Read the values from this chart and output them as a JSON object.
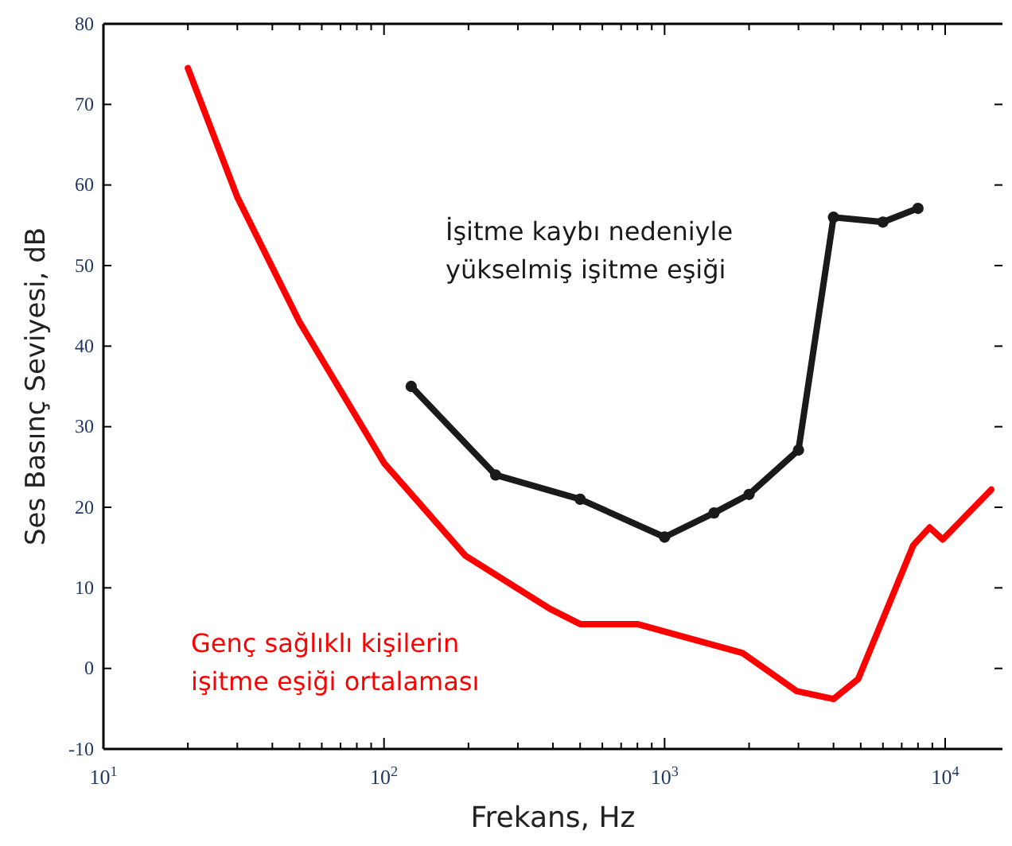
{
  "chart_data": {
    "type": "line",
    "xlabel": "Frekans, Hz",
    "ylabel": "Ses Basınç Seviyesi, dB",
    "log": "x",
    "grid": false,
    "xlim": [
      10,
      16000
    ],
    "ylim": [
      -10,
      80
    ],
    "xticks": [
      {
        "value": 10,
        "label": "10$^{1}$"
      },
      {
        "value": 20,
        "label": null
      },
      {
        "value": 30,
        "label": null
      },
      {
        "value": 40,
        "label": null
      },
      {
        "value": 50,
        "label": null
      },
      {
        "value": 60,
        "label": null
      },
      {
        "value": 70,
        "label": null
      },
      {
        "value": 80,
        "label": null
      },
      {
        "value": 90,
        "label": null
      },
      {
        "value": 100,
        "label": "10$^{2}$"
      },
      {
        "value": 200,
        "label": null
      },
      {
        "value": 300,
        "label": null
      },
      {
        "value": 400,
        "label": null
      },
      {
        "value": 500,
        "label": null
      },
      {
        "value": 600,
        "label": null
      },
      {
        "value": 700,
        "label": null
      },
      {
        "value": 800,
        "label": null
      },
      {
        "value": 900,
        "label": null
      },
      {
        "value": 1000,
        "label": "10$^{3}$"
      },
      {
        "value": 2000,
        "label": null
      },
      {
        "value": 3000,
        "label": null
      },
      {
        "value": 4000,
        "label": null
      },
      {
        "value": 5000,
        "label": null
      },
      {
        "value": 6000,
        "label": null
      },
      {
        "value": 7000,
        "label": null
      },
      {
        "value": 8000,
        "label": null
      },
      {
        "value": 9000,
        "label": null
      },
      {
        "value": 10000,
        "label": "10$^{4}$"
      }
    ],
    "yticks": [
      -10,
      0,
      10,
      20,
      30,
      40,
      50,
      60,
      70,
      80
    ],
    "series": [
      {
        "name": "Genç sağlıklı kişilerin\nişitme eşiği ortalaması",
        "color": "#ff0000",
        "marker": "none",
        "x": [
          20,
          30,
          50,
          100,
          195,
          390,
          500,
          800,
          1900,
          2950,
          4000,
          4900,
          7700,
          8800,
          9800,
          14600
        ],
        "values": [
          74.5,
          58.5,
          43,
          25.5,
          14,
          7.4,
          5.5,
          5.5,
          1.9,
          -2.8,
          -3.8,
          -1.3,
          15.3,
          17.5,
          16,
          22.2
        ]
      },
      {
        "name": "İşitme kaybı nedeniyle\nyükselmiş işitme eşiği",
        "color": "#1a1a1a",
        "marker": "circle",
        "x": [
          125,
          250,
          500,
          1000,
          1500,
          2000,
          3000,
          4000,
          6000,
          8000
        ],
        "values": [
          35,
          24,
          21,
          16.3,
          19.3,
          21.6,
          27.1,
          56,
          55.4,
          57.1
        ]
      }
    ]
  }
}
